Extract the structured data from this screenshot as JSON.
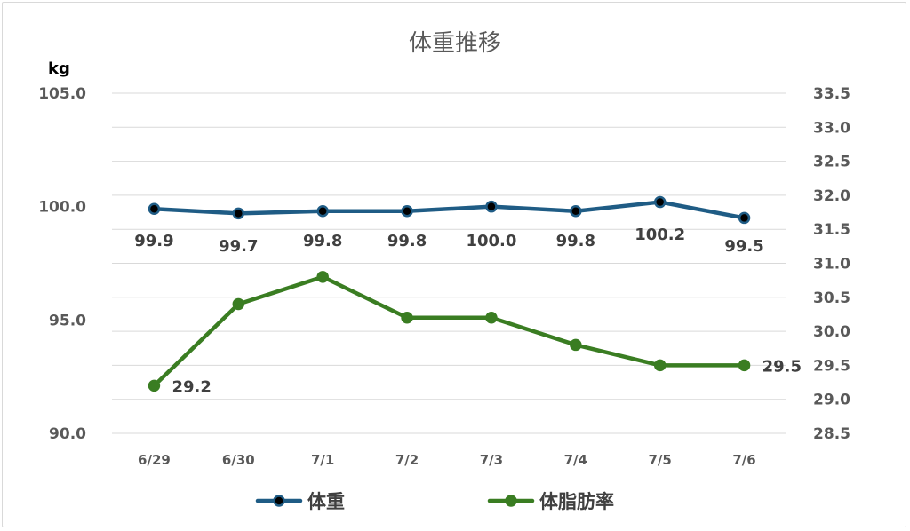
{
  "chart_data": {
    "type": "line",
    "title": "体重推移",
    "categories": [
      "6/29",
      "6/30",
      "7/1",
      "7/2",
      "7/3",
      "7/4",
      "7/5",
      "7/6"
    ],
    "y_left": {
      "unit": "kg",
      "ylim": [
        90.0,
        105.0
      ],
      "ticks": [
        "90.0",
        "95.0",
        "100.0",
        "105.0"
      ]
    },
    "y_right": {
      "ylim": [
        28.5,
        33.5
      ],
      "ticks": [
        "28.5",
        "29.0",
        "29.5",
        "30.0",
        "30.5",
        "31.0",
        "31.5",
        "32.0",
        "32.5",
        "33.0",
        "33.5"
      ]
    },
    "grid": true,
    "legend_position": "bottom",
    "series": [
      {
        "name": "体重",
        "axis": "left",
        "color": "#1f5c85",
        "marker_fill": "#000000",
        "values": [
          99.9,
          99.7,
          99.8,
          99.8,
          100.0,
          99.8,
          100.2,
          99.5
        ],
        "labels": [
          "99.9",
          "99.7",
          "99.8",
          "99.8",
          "100.0",
          "99.8",
          "100.2",
          "99.5"
        ]
      },
      {
        "name": "体脂肪率",
        "axis": "right",
        "color": "#3a7d22",
        "marker_fill": "#3a7d22",
        "values": [
          29.2,
          30.4,
          30.8,
          30.2,
          30.2,
          29.8,
          29.5,
          29.5
        ],
        "labels": [
          "29.2",
          "",
          "",
          "",
          "",
          "",
          "",
          "29.5"
        ]
      }
    ]
  }
}
